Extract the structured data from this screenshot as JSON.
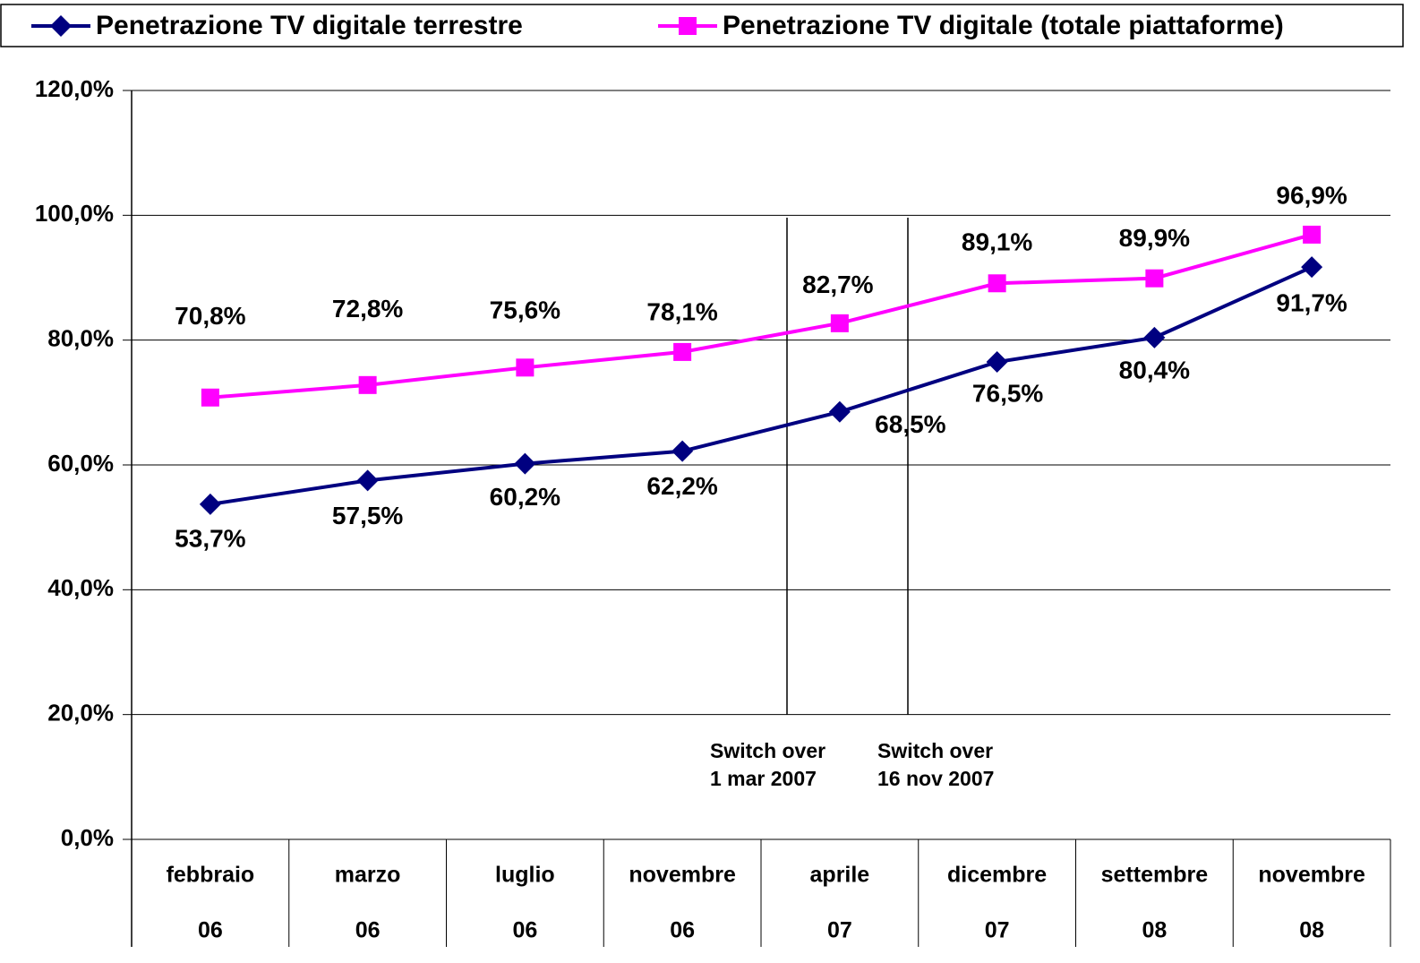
{
  "chart_data": {
    "type": "line",
    "categories": [
      [
        "febbraio",
        "06"
      ],
      [
        "marzo",
        "06"
      ],
      [
        "luglio",
        "06"
      ],
      [
        "novembre",
        "06"
      ],
      [
        "aprile",
        "07"
      ],
      [
        "dicembre",
        "07"
      ],
      [
        "settembre",
        "08"
      ],
      [
        "novembre",
        "08"
      ]
    ],
    "series": [
      {
        "name": "Penetrazione TV digitale terrestre",
        "color": "#000080",
        "marker": "diamond",
        "values": [
          53.7,
          57.5,
          60.2,
          62.2,
          68.5,
          76.5,
          80.4,
          91.7
        ],
        "value_labels": [
          "53,7%",
          "57,5%",
          "60,2%",
          "62,2%",
          "68,5%",
          "76,5%",
          "80,4%",
          "91,7%"
        ]
      },
      {
        "name": "Penetrazione TV digitale (totale piattaforme)",
        "color": "#ff00ff",
        "marker": "square",
        "values": [
          70.8,
          72.8,
          75.6,
          78.1,
          82.7,
          89.1,
          89.9,
          96.9
        ],
        "value_labels": [
          "70,8%",
          "72,8%",
          "75,6%",
          "78,1%",
          "82,7%",
          "89,1%",
          "89,9%",
          "96,9%"
        ]
      }
    ],
    "ylim": [
      0,
      120
    ],
    "yticks": [
      {
        "value": 0,
        "label": "0,0%"
      },
      {
        "value": 20,
        "label": "20,0%"
      },
      {
        "value": 40,
        "label": "40,0%"
      },
      {
        "value": 60,
        "label": "60,0%"
      },
      {
        "value": 80,
        "label": "80,0%"
      },
      {
        "value": 100,
        "label": "100,0%"
      },
      {
        "value": 120,
        "label": "120,0%"
      }
    ],
    "grid": true,
    "legend": "top",
    "annotations": [
      [
        "Switch over",
        "1 mar 2007"
      ],
      [
        "Switch over",
        "16 nov 2007"
      ]
    ]
  }
}
